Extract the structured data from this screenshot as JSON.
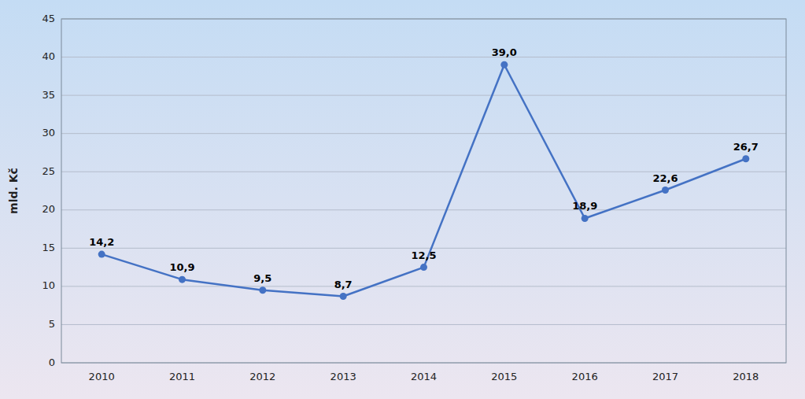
{
  "chart_data": {
    "type": "line",
    "y_label": "mld. Kč",
    "categories": [
      "2010",
      "2011",
      "2012",
      "2013",
      "2014",
      "2015",
      "2016",
      "2017",
      "2018"
    ],
    "values": [
      14.2,
      10.9,
      9.5,
      8.7,
      12.5,
      39.0,
      18.9,
      22.6,
      26.7
    ],
    "value_labels": [
      "14,2",
      "10,9",
      "9,5",
      "8,7",
      "12,5",
      "39,0",
      "18,9",
      "22,6",
      "26,7"
    ],
    "color": "#4472C4",
    "marker": "circle",
    "ylim": [
      0,
      45
    ],
    "yticks": [
      0,
      5,
      10,
      15,
      20,
      25,
      30,
      35,
      40,
      45
    ],
    "grid": true,
    "data_labels": true
  }
}
